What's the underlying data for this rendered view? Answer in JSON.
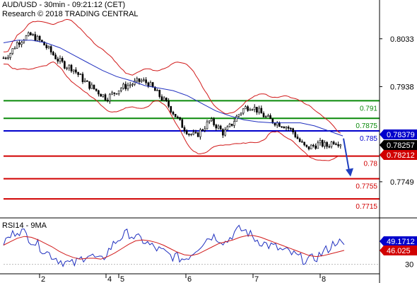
{
  "header": {
    "line1": "AUD/USD - 30min - 09:21:12 (CET)",
    "line2": "Research © 2018 TRADING CENTRAL"
  },
  "rsi_label": "RSI14 - 9MA",
  "colors": {
    "candle": "#000000",
    "ma_blue": "#1f2fbf",
    "band_red": "#d11a1a",
    "green_level": "#0a8a0a",
    "blue_level": "#0000cc",
    "red_level": "#d10000",
    "arrow": "#1f3fbf",
    "rsi_line": "#1f2fbf",
    "rsi_ma": "#d11a1a"
  },
  "chart_data": [
    {
      "type": "candlestick",
      "title": "AUD/USD - 30min",
      "y_ticks": [
        0.8033,
        0.7938,
        0.7749
      ],
      "ylim": [
        0.768,
        0.811
      ],
      "x_ticks": [
        "2",
        "4",
        "5",
        "6",
        "7",
        "8"
      ],
      "levels": [
        {
          "value": 0.791,
          "label": "0.791",
          "color": "green"
        },
        {
          "value": 0.7875,
          "label": "0.7875",
          "color": "green"
        },
        {
          "value": 0.785,
          "label": "0.785",
          "color": "blue"
        },
        {
          "value": 0.78,
          "label": "0.78",
          "color": "red"
        },
        {
          "value": 0.7755,
          "label": "0.7755",
          "color": "red"
        },
        {
          "value": 0.7715,
          "label": "0.7715",
          "color": "red"
        }
      ],
      "price_tags": [
        {
          "value": 0.78379,
          "label": "0.78379",
          "color": "blue"
        },
        {
          "value": 0.78257,
          "label": "0.78257",
          "color": "black"
        },
        {
          "value": 0.78212,
          "label": "0.78212",
          "color": "red"
        }
      ],
      "close_path": [
        0.7995,
        0.8005,
        0.8025,
        0.8035,
        0.804,
        0.8032,
        0.802,
        0.8005,
        0.799,
        0.798,
        0.7975,
        0.796,
        0.7945,
        0.7935,
        0.7925,
        0.7915,
        0.7925,
        0.7935,
        0.794,
        0.7945,
        0.795,
        0.7945,
        0.793,
        0.7915,
        0.79,
        0.788,
        0.786,
        0.7845,
        0.784,
        0.7855,
        0.787,
        0.786,
        0.7845,
        0.786,
        0.788,
        0.7895,
        0.79,
        0.789,
        0.7878,
        0.787,
        0.7865,
        0.786,
        0.785,
        0.783,
        0.7815,
        0.782,
        0.7825,
        0.782,
        0.783,
        0.7826
      ],
      "moving_average_path": [
        0.8025,
        0.803,
        0.803,
        0.8025,
        0.8015,
        0.8,
        0.7985,
        0.797,
        0.7958,
        0.795,
        0.794,
        0.7935,
        0.793,
        0.792,
        0.7905,
        0.789,
        0.788,
        0.7872,
        0.7868,
        0.7866,
        0.7866,
        0.7866,
        0.786,
        0.785,
        0.784
      ],
      "forecast_arrow": {
        "from": 0.7835,
        "to": 0.7762
      }
    },
    {
      "type": "line",
      "title": "RSI14 - 9MA",
      "y_ticks": [
        30
      ],
      "ylim": [
        20,
        80
      ],
      "series": [
        {
          "name": "RSI14",
          "last": 49.1712,
          "values": [
            55,
            62,
            70,
            66,
            58,
            52,
            45,
            40,
            35,
            32,
            30,
            35,
            42,
            38,
            33,
            45,
            55,
            62,
            66,
            60,
            58,
            52,
            48,
            44,
            40,
            38,
            36,
            42,
            50,
            58,
            63,
            60,
            55,
            65,
            70,
            68,
            60,
            56,
            52,
            50,
            46,
            44,
            40,
            36,
            35,
            38,
            44,
            50,
            58,
            49
          ]
        },
        {
          "name": "9MA",
          "last": 46.025,
          "values": [
            52,
            56,
            60,
            62,
            61,
            58,
            54,
            50,
            45,
            41,
            38,
            36,
            37,
            37,
            36,
            39,
            43,
            48,
            53,
            57,
            58,
            57,
            55,
            52,
            48,
            44,
            41,
            40,
            42,
            46,
            50,
            54,
            56,
            58,
            61,
            63,
            63,
            61,
            58,
            55,
            52,
            49,
            46,
            43,
            40,
            39,
            40,
            42,
            44,
            46
          ]
        }
      ],
      "tags": [
        {
          "label": "49.1712",
          "color": "blue"
        },
        {
          "label": "46.025",
          "color": "red"
        }
      ]
    }
  ]
}
